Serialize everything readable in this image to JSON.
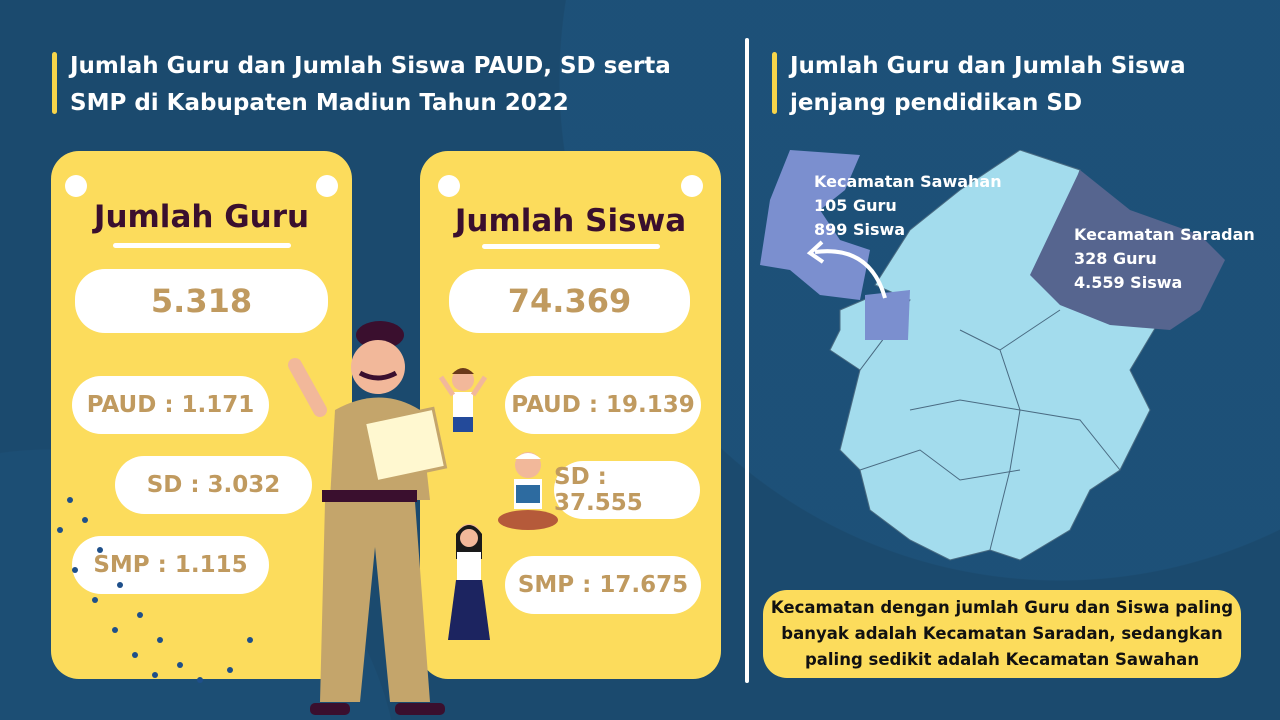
{
  "left_title": "Jumlah Guru dan Jumlah Siswa PAUD, SD serta SMP di Kabupaten Madiun Tahun 2022",
  "right_title": "Jumlah Guru dan Jumlah Siswa jenjang pendidikan SD",
  "guru": {
    "heading": "Jumlah Guru",
    "total": "5.318",
    "paud": "PAUD : 1.171",
    "sd": "SD : 3.032",
    "smp": "SMP : 1.115"
  },
  "siswa": {
    "heading": "Jumlah Siswa",
    "total": "74.369",
    "paud": "PAUD : 19.139",
    "sd": "SD : 37.555",
    "smp": "SMP : 17.675"
  },
  "map": {
    "sawahan": {
      "name": "Kecamatan Sawahan",
      "guru": "105 Guru",
      "siswa": "899 Siswa"
    },
    "saradan": {
      "name": "Kecamatan Saradan",
      "guru": "328 Guru",
      "siswa": "4.559 Siswa"
    }
  },
  "note": "Kecamatan dengan jumlah Guru dan Siswa paling banyak adalah Kecamatan Saradan, sedangkan paling sedikit adalah Kecamatan Sawahan",
  "colors": {
    "background": "#1b4a6e",
    "card": "#fcdc5c",
    "accent": "#f7d54a",
    "map_base": "#a3dced",
    "sawahan": "#7b8fcf",
    "saradan": "#56658f"
  }
}
